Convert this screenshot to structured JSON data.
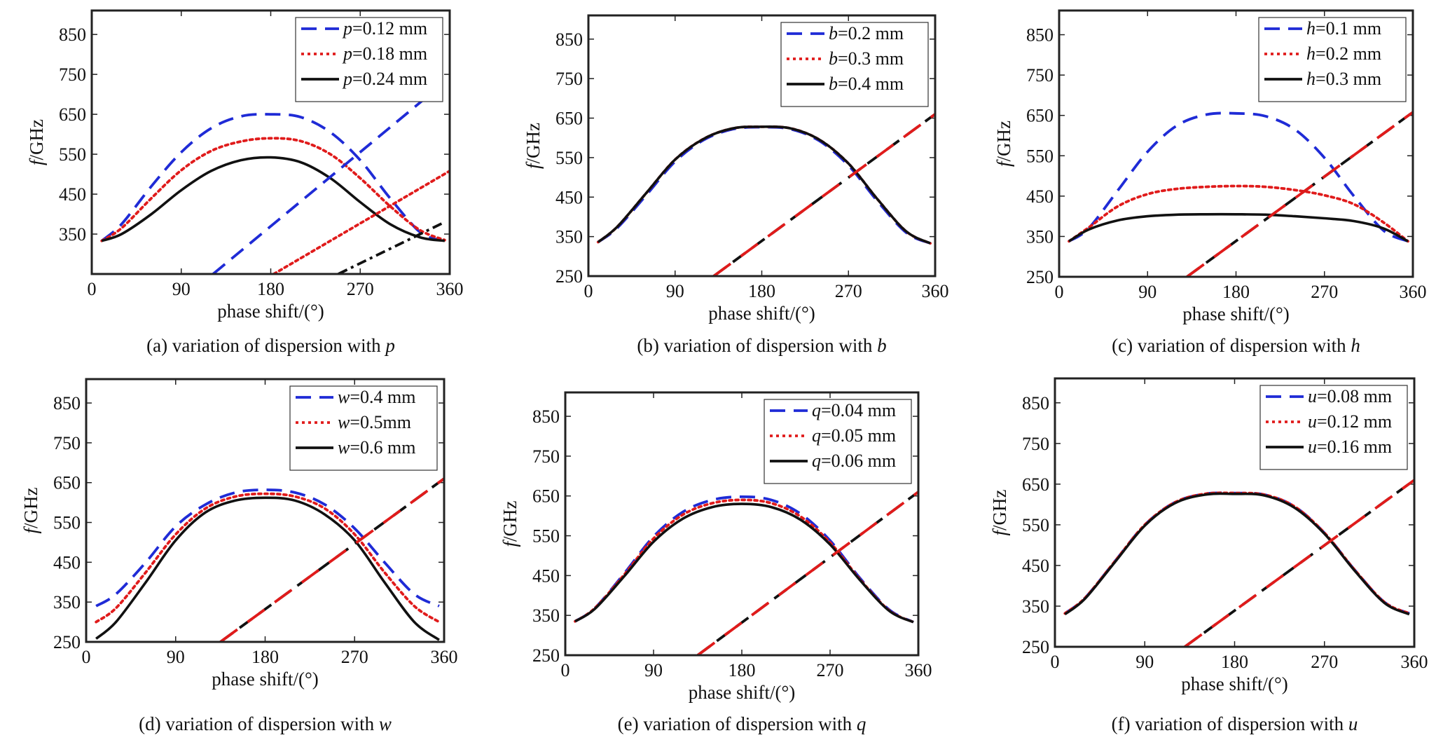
{
  "panels": [
    {
      "caption": "(a) variation of dispersion with ",
      "caption_var": "p",
      "xlabel": "phase shift/(°)",
      "ylabel_var": "f",
      "ylabel_unit": "/GHz",
      "legend_placement": "top-right"
    },
    {
      "caption": "(b) variation of dispersion with ",
      "caption_var": "b",
      "xlabel": "phase shift/(°)",
      "ylabel_var": "f",
      "ylabel_unit": "/GHz",
      "legend_placement": "top-right"
    },
    {
      "caption": "(c) variation of dispersion with ",
      "caption_var": "h",
      "xlabel": "phase shift/(°)",
      "ylabel_var": "f",
      "ylabel_unit": "/GHz",
      "legend_placement": "top-right"
    },
    {
      "caption": "(d) variation of dispersion with ",
      "caption_var": "w",
      "xlabel": "phase shift/(°)",
      "ylabel_var": "f",
      "ylabel_unit": "/GHz",
      "legend_placement": "top-right"
    },
    {
      "caption": "(e) variation of dispersion with ",
      "caption_var": "q",
      "xlabel": "phase shift/(°)",
      "ylabel_var": "f",
      "ylabel_unit": "/GHz",
      "legend_placement": "top-right"
    },
    {
      "caption": "(f) variation of dispersion with ",
      "caption_var": "u",
      "xlabel": "phase shift/(°)",
      "ylabel_var": "f",
      "ylabel_unit": "/GHz",
      "legend_placement": "top-right"
    }
  ],
  "chart_data": [
    {
      "type": "line",
      "xlim": [
        0,
        360
      ],
      "ylim": [
        250,
        910
      ],
      "xticks": [
        0,
        90,
        180,
        270,
        360
      ],
      "yticks": [
        350,
        450,
        550,
        650,
        750,
        850
      ],
      "grid": false,
      "series": [
        {
          "name": "=0.12 mm",
          "var": "p",
          "color": "#1f2bd6",
          "style": "dash",
          "x": [
            10,
            30,
            60,
            90,
            120,
            150,
            180,
            210,
            240,
            270,
            300,
            330,
            350
          ],
          "y": [
            333,
            375,
            470,
            555,
            615,
            645,
            650,
            643,
            605,
            535,
            440,
            355,
            335
          ]
        },
        {
          "name": "=0.18 mm",
          "var": "p",
          "color": "#e01b1b",
          "style": "dot",
          "x": [
            10,
            30,
            60,
            90,
            120,
            150,
            180,
            210,
            240,
            270,
            300,
            330,
            355
          ],
          "y": [
            333,
            365,
            440,
            510,
            558,
            582,
            590,
            583,
            550,
            490,
            420,
            360,
            335
          ]
        },
        {
          "name": "=0.24 mm",
          "var": "p",
          "color": "#111111",
          "style": "solid",
          "x": [
            10,
            30,
            60,
            90,
            120,
            150,
            180,
            210,
            240,
            270,
            300,
            330,
            355
          ],
          "y": [
            333,
            350,
            400,
            460,
            508,
            535,
            542,
            530,
            490,
            430,
            375,
            342,
            333
          ]
        },
        {
          "name": "",
          "color": "#1f2bd6",
          "style": "dash",
          "x": [
            122,
            345
          ],
          "y": [
            250,
            710
          ]
        },
        {
          "name": "",
          "color": "#e01b1b",
          "style": "dot",
          "x": [
            183,
            360
          ],
          "y": [
            250,
            508
          ]
        },
        {
          "name": "",
          "color": "#111111",
          "style": "dashdot",
          "x": [
            248,
            355
          ],
          "y": [
            250,
            380
          ]
        }
      ]
    },
    {
      "type": "line",
      "xlim": [
        0,
        360
      ],
      "ylim": [
        250,
        910
      ],
      "xticks": [
        0,
        90,
        180,
        270,
        360
      ],
      "yticks": [
        250,
        350,
        450,
        550,
        650,
        750,
        850
      ],
      "grid": false,
      "series": [
        {
          "name": "=0.2 mm",
          "var": "b",
          "color": "#1f2bd6",
          "style": "dash",
          "x": [
            10,
            30,
            60,
            90,
            120,
            150,
            180,
            210,
            240,
            270,
            300,
            330,
            355
          ],
          "y": [
            336,
            372,
            455,
            540,
            595,
            622,
            627,
            622,
            592,
            530,
            440,
            360,
            333
          ]
        },
        {
          "name": "=0.3 mm",
          "var": "b",
          "color": "#e01b1b",
          "style": "dot",
          "x": [
            10,
            30,
            60,
            90,
            120,
            150,
            180,
            210,
            240,
            270,
            300,
            330,
            355
          ],
          "y": [
            336,
            375,
            460,
            545,
            598,
            624,
            628,
            624,
            595,
            535,
            445,
            363,
            333
          ]
        },
        {
          "name": "=0.4 mm",
          "var": "b",
          "color": "#111111",
          "style": "solid",
          "x": [
            10,
            30,
            60,
            90,
            120,
            150,
            180,
            210,
            240,
            270,
            300,
            330,
            355
          ],
          "y": [
            336,
            375,
            460,
            545,
            598,
            624,
            628,
            624,
            595,
            535,
            445,
            363,
            333
          ]
        },
        {
          "name": "",
          "color": "#111111",
          "style": "dash",
          "x": [
            130,
            360
          ],
          "y": [
            250,
            660
          ]
        },
        {
          "name": "",
          "color": "#e01b1b",
          "style": "dash-long",
          "x": [
            130,
            360
          ],
          "y": [
            250,
            660
          ]
        }
      ]
    },
    {
      "type": "line",
      "xlim": [
        0,
        360
      ],
      "ylim": [
        250,
        910
      ],
      "xticks": [
        0,
        90,
        180,
        270,
        360
      ],
      "yticks": [
        250,
        350,
        450,
        550,
        650,
        750,
        850
      ],
      "grid": false,
      "series": [
        {
          "name": "=0.1 mm",
          "var": "h",
          "color": "#1f2bd6",
          "style": "dash",
          "x": [
            10,
            30,
            60,
            90,
            120,
            150,
            180,
            210,
            240,
            270,
            300,
            330,
            355
          ],
          "y": [
            338,
            370,
            465,
            560,
            625,
            652,
            655,
            648,
            615,
            545,
            450,
            365,
            338
          ]
        },
        {
          "name": "=0.2 mm",
          "var": "h",
          "color": "#e01b1b",
          "style": "dot",
          "x": [
            10,
            30,
            60,
            90,
            120,
            150,
            180,
            210,
            240,
            270,
            300,
            330,
            355
          ],
          "y": [
            338,
            372,
            425,
            455,
            468,
            473,
            475,
            473,
            465,
            452,
            430,
            385,
            338
          ]
        },
        {
          "name": "=0.3 mm",
          "var": "h",
          "color": "#111111",
          "style": "solid",
          "x": [
            10,
            30,
            60,
            90,
            120,
            150,
            180,
            210,
            240,
            270,
            300,
            330,
            355
          ],
          "y": [
            338,
            367,
            390,
            400,
            404,
            405,
            405,
            404,
            400,
            395,
            388,
            370,
            338
          ]
        },
        {
          "name": "",
          "color": "#111111",
          "style": "dash",
          "x": [
            130,
            360
          ],
          "y": [
            250,
            658
          ]
        },
        {
          "name": "",
          "color": "#e01b1b",
          "style": "dash-long",
          "x": [
            130,
            360
          ],
          "y": [
            250,
            658
          ]
        }
      ]
    },
    {
      "type": "line",
      "xlim": [
        0,
        360
      ],
      "ylim": [
        250,
        910
      ],
      "xticks": [
        0,
        90,
        180,
        270,
        360
      ],
      "yticks": [
        250,
        350,
        450,
        550,
        650,
        750,
        850
      ],
      "grid": false,
      "series": [
        {
          "name": "=0.4 mm",
          "var": "w",
          "color": "#1f2bd6",
          "style": "dash",
          "x": [
            10,
            30,
            60,
            90,
            120,
            150,
            180,
            210,
            240,
            270,
            300,
            330,
            355
          ],
          "y": [
            340,
            370,
            450,
            540,
            595,
            625,
            632,
            625,
            595,
            535,
            450,
            370,
            340
          ]
        },
        {
          "name": "=0.5mm",
          "var": "w",
          "color": "#e01b1b",
          "style": "dot",
          "x": [
            10,
            30,
            60,
            90,
            120,
            150,
            180,
            210,
            240,
            270,
            300,
            330,
            355
          ],
          "y": [
            300,
            335,
            425,
            520,
            585,
            615,
            622,
            615,
            585,
            520,
            425,
            340,
            300
          ]
        },
        {
          "name": "=0.6 mm",
          "var": "w",
          "color": "#111111",
          "style": "solid",
          "x": [
            10,
            30,
            60,
            90,
            120,
            150,
            180,
            210,
            240,
            270,
            300,
            330,
            355
          ],
          "y": [
            258,
            300,
            400,
            505,
            575,
            605,
            612,
            605,
            570,
            505,
            400,
            300,
            255
          ]
        },
        {
          "name": "",
          "color": "#111111",
          "style": "dash",
          "x": [
            135,
            360
          ],
          "y": [
            250,
            660
          ]
        },
        {
          "name": "",
          "color": "#e01b1b",
          "style": "dash-long",
          "x": [
            135,
            360
          ],
          "y": [
            250,
            660
          ]
        }
      ]
    },
    {
      "type": "line",
      "xlim": [
        0,
        360
      ],
      "ylim": [
        250,
        910
      ],
      "xticks": [
        0,
        90,
        180,
        270,
        360
      ],
      "yticks": [
        250,
        350,
        450,
        550,
        650,
        750,
        850
      ],
      "grid": false,
      "series": [
        {
          "name": "=0.04 mm",
          "var": "q",
          "color": "#1f2bd6",
          "style": "dash",
          "x": [
            10,
            30,
            60,
            90,
            120,
            150,
            180,
            210,
            240,
            270,
            300,
            330,
            355
          ],
          "y": [
            335,
            368,
            455,
            548,
            610,
            640,
            648,
            640,
            605,
            538,
            445,
            365,
            333
          ]
        },
        {
          "name": "=0.05 mm",
          "var": "q",
          "color": "#e01b1b",
          "style": "dot",
          "x": [
            10,
            30,
            60,
            90,
            120,
            150,
            180,
            210,
            240,
            270,
            300,
            330,
            355
          ],
          "y": [
            335,
            368,
            452,
            543,
            603,
            632,
            640,
            632,
            598,
            533,
            442,
            363,
            333
          ]
        },
        {
          "name": "=0.06 mm",
          "var": "q",
          "color": "#111111",
          "style": "solid",
          "x": [
            10,
            30,
            60,
            90,
            120,
            150,
            180,
            210,
            240,
            270,
            300,
            330,
            355
          ],
          "y": [
            335,
            366,
            448,
            535,
            593,
            622,
            630,
            622,
            590,
            528,
            440,
            362,
            333
          ]
        },
        {
          "name": "",
          "color": "#111111",
          "style": "dash",
          "x": [
            135,
            360
          ],
          "y": [
            250,
            660
          ]
        },
        {
          "name": "",
          "color": "#e01b1b",
          "style": "dash-long",
          "x": [
            135,
            360
          ],
          "y": [
            250,
            660
          ]
        }
      ]
    },
    {
      "type": "line",
      "xlim": [
        0,
        360
      ],
      "ylim": [
        250,
        910
      ],
      "xticks": [
        0,
        90,
        180,
        270,
        360
      ],
      "yticks": [
        250,
        350,
        450,
        550,
        650,
        750,
        850
      ],
      "grid": false,
      "series": [
        {
          "name": "=0.08 mm",
          "var": "u",
          "color": "#1f2bd6",
          "style": "dash",
          "x": [
            10,
            30,
            60,
            90,
            120,
            150,
            180,
            210,
            240,
            270,
            300,
            330,
            355
          ],
          "y": [
            332,
            370,
            460,
            550,
            605,
            626,
            628,
            624,
            595,
            530,
            440,
            360,
            332
          ]
        },
        {
          "name": "=0.12 mm",
          "var": "u",
          "color": "#e01b1b",
          "style": "dot",
          "x": [
            10,
            30,
            60,
            90,
            120,
            150,
            180,
            210,
            240,
            270,
            300,
            330,
            355
          ],
          "y": [
            332,
            370,
            460,
            550,
            605,
            626,
            628,
            624,
            595,
            530,
            440,
            360,
            332
          ]
        },
        {
          "name": "=0.16 mm",
          "var": "u",
          "color": "#111111",
          "style": "solid",
          "x": [
            10,
            30,
            60,
            90,
            120,
            150,
            180,
            210,
            240,
            270,
            300,
            330,
            355
          ],
          "y": [
            330,
            368,
            458,
            548,
            603,
            624,
            626,
            622,
            592,
            528,
            438,
            358,
            330
          ]
        },
        {
          "name": "",
          "color": "#111111",
          "style": "dash",
          "x": [
            130,
            360
          ],
          "y": [
            250,
            660
          ]
        },
        {
          "name": "",
          "color": "#e01b1b",
          "style": "dash-long",
          "x": [
            130,
            360
          ],
          "y": [
            250,
            660
          ]
        }
      ]
    }
  ]
}
